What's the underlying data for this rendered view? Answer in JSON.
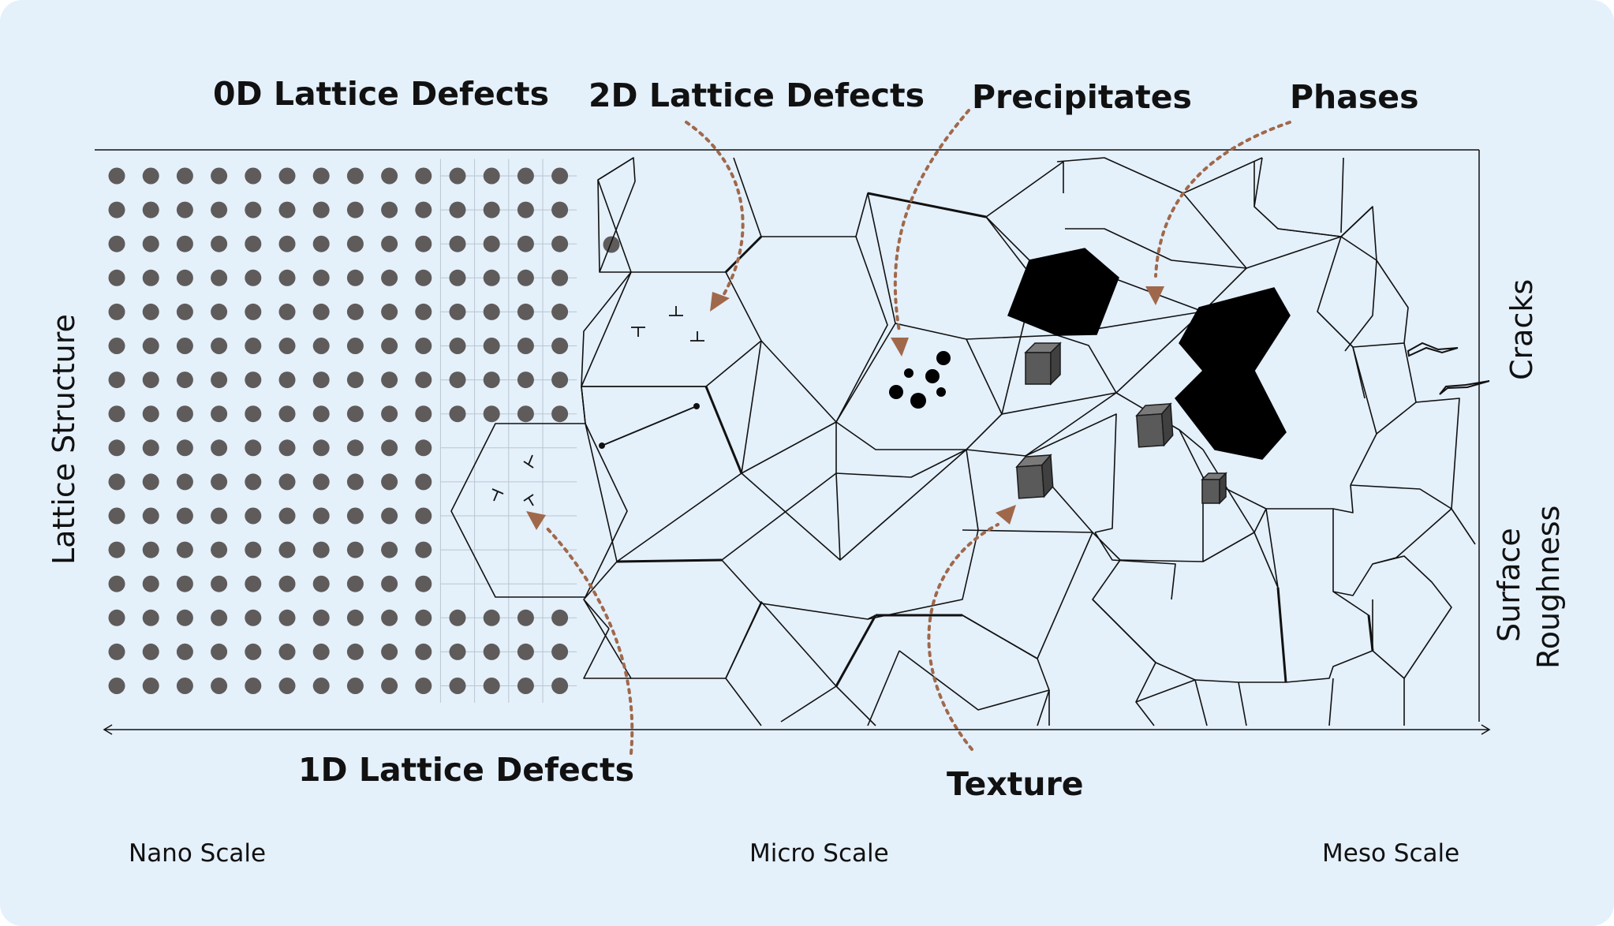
{
  "labels": {
    "zero_d": "0D Lattice Defects",
    "two_d": "2D Lattice Defects",
    "precipitates": "Precipitates",
    "phases": "Phases",
    "one_d": "1D Lattice Defects",
    "texture": "Texture",
    "lattice_structure": "Lattice Structure",
    "cracks": "Cracks",
    "surface_roughness_line1": "Surface",
    "surface_roughness_line2": "Roughness"
  },
  "scale_axis": {
    "nano": "Nano Scale",
    "micro": "Micro Scale",
    "meso": "Meso Scale"
  },
  "colors": {
    "background": "#e4f0fa",
    "atom": "#5f5b5b",
    "arrow": "#a0684a",
    "phase": "#000000"
  },
  "lattice": {
    "rows": 16,
    "columns": 14,
    "vacancies": 0
  }
}
